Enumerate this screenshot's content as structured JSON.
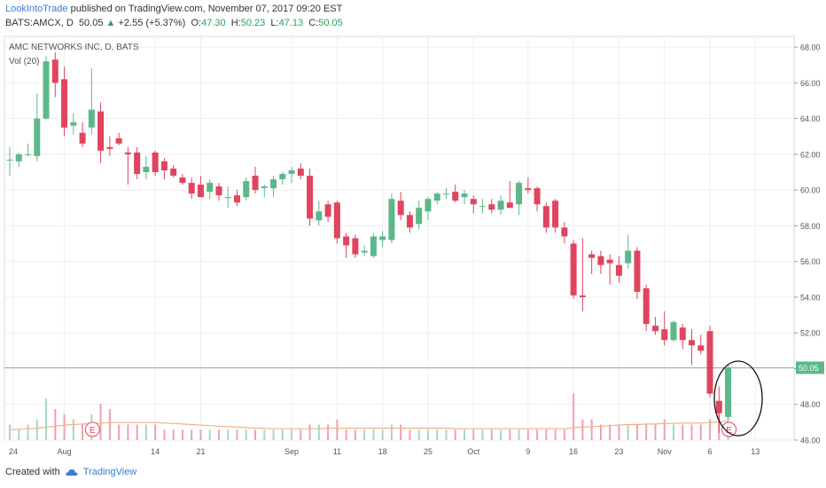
{
  "header": {
    "publisher": "LookIntoTrade",
    "published_text": "published on TradingView.com, November 07, 2017 09:20 EST"
  },
  "ticker": {
    "symbol": "BATS:AMCX, D",
    "last": "50.05",
    "change": "+2.55 (+5.37%)",
    "open_label": "O:",
    "open": "47.30",
    "high_label": "H:",
    "high": "50.23",
    "low_label": "L:",
    "low": "47.13",
    "close_label": "C:",
    "close": "50.05"
  },
  "legend": {
    "title": "AMC NETWORKS INC, D, BATS",
    "volume": "Vol (20)"
  },
  "footer": {
    "created_with": "Created with",
    "brand": "TradingView"
  },
  "colors": {
    "up": "#5cb88a",
    "down": "#e0445e",
    "vol_up": "#a6d8bf",
    "vol_down": "#f0a0ad",
    "ma": "#f5b083",
    "price_line": "#7fc6a4"
  },
  "chart_data": {
    "type": "candlestick",
    "title": "AMC NETWORKS INC, D, BATS",
    "ylim": [
      46,
      68.6
    ],
    "y_ticks": [
      "68.00",
      "66.00",
      "64.00",
      "62.00",
      "60.00",
      "58.00",
      "56.00",
      "54.00",
      "52.00",
      "50.00",
      "48.00",
      "46.00"
    ],
    "last_price": "50.05",
    "x_ticks": [
      "24",
      "Aug",
      "14",
      "21",
      "Sep",
      "11",
      "18",
      "25",
      "Oct",
      "9",
      "16",
      "23",
      "Nov",
      "6",
      "13"
    ],
    "earnings_markers": [
      "E",
      "E"
    ],
    "candles": [
      {
        "o": 61.7,
        "h": 62.4,
        "l": 60.8,
        "c": 61.7
      },
      {
        "o": 61.6,
        "h": 62.1,
        "l": 61.3,
        "c": 62.0
      },
      {
        "o": 62.0,
        "h": 62.6,
        "l": 61.9,
        "c": 62.0
      },
      {
        "o": 61.9,
        "h": 65.4,
        "l": 61.6,
        "c": 64.0
      },
      {
        "o": 64.0,
        "h": 67.5,
        "l": 63.9,
        "c": 67.2
      },
      {
        "o": 67.3,
        "h": 67.7,
        "l": 65.2,
        "c": 66.0
      },
      {
        "o": 66.2,
        "h": 66.9,
        "l": 63.0,
        "c": 63.5
      },
      {
        "o": 63.6,
        "h": 64.3,
        "l": 63.1,
        "c": 63.8
      },
      {
        "o": 63.2,
        "h": 63.8,
        "l": 62.4,
        "c": 62.6
      },
      {
        "o": 63.5,
        "h": 66.8,
        "l": 63.1,
        "c": 64.5
      },
      {
        "o": 64.4,
        "h": 64.9,
        "l": 61.5,
        "c": 62.2
      },
      {
        "o": 62.4,
        "h": 63.0,
        "l": 61.9,
        "c": 62.3
      },
      {
        "o": 62.9,
        "h": 63.2,
        "l": 62.5,
        "c": 62.6
      },
      {
        "o": 62.1,
        "h": 62.4,
        "l": 60.3,
        "c": 62.0
      },
      {
        "o": 62.1,
        "h": 62.4,
        "l": 60.6,
        "c": 60.9
      },
      {
        "o": 61.0,
        "h": 61.9,
        "l": 60.6,
        "c": 61.3
      },
      {
        "o": 62.1,
        "h": 62.2,
        "l": 60.8,
        "c": 61.0
      },
      {
        "o": 61.6,
        "h": 61.8,
        "l": 60.6,
        "c": 61.1
      },
      {
        "o": 61.2,
        "h": 61.4,
        "l": 60.7,
        "c": 60.8
      },
      {
        "o": 60.7,
        "h": 60.9,
        "l": 60.3,
        "c": 60.4
      },
      {
        "o": 60.4,
        "h": 60.7,
        "l": 59.5,
        "c": 59.8
      },
      {
        "o": 60.3,
        "h": 60.8,
        "l": 59.6,
        "c": 59.6
      },
      {
        "o": 59.9,
        "h": 60.6,
        "l": 59.5,
        "c": 60.4
      },
      {
        "o": 60.2,
        "h": 60.4,
        "l": 59.4,
        "c": 59.7
      },
      {
        "o": 59.6,
        "h": 60.2,
        "l": 59.0,
        "c": 59.6
      },
      {
        "o": 59.7,
        "h": 60.0,
        "l": 59.1,
        "c": 59.3
      },
      {
        "o": 59.6,
        "h": 60.7,
        "l": 59.4,
        "c": 60.5
      },
      {
        "o": 60.8,
        "h": 61.3,
        "l": 59.8,
        "c": 60.0
      },
      {
        "o": 60.1,
        "h": 60.3,
        "l": 59.6,
        "c": 60.2
      },
      {
        "o": 60.1,
        "h": 60.8,
        "l": 59.6,
        "c": 60.6
      },
      {
        "o": 60.6,
        "h": 61.0,
        "l": 60.3,
        "c": 60.9
      },
      {
        "o": 60.9,
        "h": 61.3,
        "l": 60.4,
        "c": 61.1
      },
      {
        "o": 61.2,
        "h": 61.5,
        "l": 60.6,
        "c": 60.8
      },
      {
        "o": 60.8,
        "h": 61.2,
        "l": 58.0,
        "c": 58.4
      },
      {
        "o": 58.3,
        "h": 59.4,
        "l": 58.0,
        "c": 58.8
      },
      {
        "o": 59.2,
        "h": 59.4,
        "l": 58.2,
        "c": 58.5
      },
      {
        "o": 59.3,
        "h": 59.4,
        "l": 57.0,
        "c": 57.3
      },
      {
        "o": 57.4,
        "h": 57.6,
        "l": 56.2,
        "c": 56.9
      },
      {
        "o": 57.3,
        "h": 57.5,
        "l": 56.2,
        "c": 56.4
      },
      {
        "o": 56.5,
        "h": 56.9,
        "l": 56.3,
        "c": 56.6
      },
      {
        "o": 56.3,
        "h": 57.6,
        "l": 56.2,
        "c": 57.4
      },
      {
        "o": 57.2,
        "h": 57.7,
        "l": 56.8,
        "c": 57.4
      },
      {
        "o": 57.2,
        "h": 59.8,
        "l": 57.0,
        "c": 59.5
      },
      {
        "o": 59.4,
        "h": 59.9,
        "l": 58.3,
        "c": 58.6
      },
      {
        "o": 58.6,
        "h": 58.8,
        "l": 57.6,
        "c": 57.9
      },
      {
        "o": 58.1,
        "h": 59.4,
        "l": 57.8,
        "c": 59.0
      },
      {
        "o": 58.8,
        "h": 59.6,
        "l": 58.3,
        "c": 59.5
      },
      {
        "o": 59.4,
        "h": 59.9,
        "l": 59.2,
        "c": 59.8
      },
      {
        "o": 59.8,
        "h": 60.1,
        "l": 59.5,
        "c": 59.8
      },
      {
        "o": 59.9,
        "h": 60.3,
        "l": 59.3,
        "c": 59.4
      },
      {
        "o": 59.6,
        "h": 60.0,
        "l": 59.2,
        "c": 59.8
      },
      {
        "o": 59.5,
        "h": 59.7,
        "l": 58.7,
        "c": 59.2
      },
      {
        "o": 59.1,
        "h": 59.5,
        "l": 58.7,
        "c": 59.1
      },
      {
        "o": 59.2,
        "h": 59.5,
        "l": 58.7,
        "c": 58.9
      },
      {
        "o": 58.9,
        "h": 59.7,
        "l": 58.6,
        "c": 59.4
      },
      {
        "o": 59.3,
        "h": 60.5,
        "l": 59.1,
        "c": 59.0
      },
      {
        "o": 59.2,
        "h": 60.5,
        "l": 58.6,
        "c": 60.4
      },
      {
        "o": 60.1,
        "h": 60.7,
        "l": 59.8,
        "c": 60.0
      },
      {
        "o": 60.1,
        "h": 60.2,
        "l": 58.8,
        "c": 59.2
      },
      {
        "o": 59.1,
        "h": 59.3,
        "l": 57.6,
        "c": 57.9
      },
      {
        "o": 59.4,
        "h": 59.5,
        "l": 57.6,
        "c": 57.9
      },
      {
        "o": 57.9,
        "h": 58.2,
        "l": 57.0,
        "c": 57.4
      },
      {
        "o": 57.0,
        "h": 57.2,
        "l": 53.9,
        "c": 54.1
      },
      {
        "o": 54.1,
        "h": 57.3,
        "l": 53.2,
        "c": 54.0
      },
      {
        "o": 56.4,
        "h": 56.6,
        "l": 55.3,
        "c": 56.2
      },
      {
        "o": 56.3,
        "h": 56.6,
        "l": 55.3,
        "c": 55.8
      },
      {
        "o": 56.1,
        "h": 56.4,
        "l": 54.7,
        "c": 55.9
      },
      {
        "o": 55.8,
        "h": 56.3,
        "l": 54.8,
        "c": 55.2
      },
      {
        "o": 55.9,
        "h": 57.5,
        "l": 55.6,
        "c": 56.6
      },
      {
        "o": 56.6,
        "h": 56.8,
        "l": 53.9,
        "c": 54.3
      },
      {
        "o": 54.5,
        "h": 54.7,
        "l": 52.1,
        "c": 52.5
      },
      {
        "o": 52.4,
        "h": 52.9,
        "l": 51.9,
        "c": 52.1
      },
      {
        "o": 52.2,
        "h": 53.2,
        "l": 51.3,
        "c": 51.6
      },
      {
        "o": 51.6,
        "h": 52.7,
        "l": 51.5,
        "c": 52.6
      },
      {
        "o": 52.3,
        "h": 52.5,
        "l": 51.1,
        "c": 51.6
      },
      {
        "o": 51.6,
        "h": 52.2,
        "l": 50.2,
        "c": 51.3
      },
      {
        "o": 51.3,
        "h": 51.9,
        "l": 50.8,
        "c": 51.0
      },
      {
        "o": 52.1,
        "h": 52.4,
        "l": 48.4,
        "c": 48.6
      },
      {
        "o": 48.2,
        "h": 49.0,
        "l": 46.4,
        "c": 47.5
      },
      {
        "o": 47.3,
        "h": 50.23,
        "l": 47.13,
        "c": 50.05
      }
    ],
    "volume": [
      3,
      2,
      3,
      4,
      8,
      6,
      5,
      4,
      3,
      5,
      7,
      6,
      3,
      3,
      3,
      3,
      3,
      2,
      2,
      2,
      2,
      2,
      2,
      2,
      2,
      2,
      2,
      2,
      2,
      2,
      2,
      2,
      2,
      3,
      3,
      3,
      4,
      2,
      2,
      2,
      2,
      2,
      3,
      3,
      2,
      2,
      2,
      2,
      2,
      2,
      2,
      2,
      2,
      2,
      2,
      2,
      2,
      2,
      2,
      2,
      2,
      2,
      9,
      4,
      4,
      3,
      3,
      3,
      3,
      3,
      3,
      3,
      4,
      3,
      3,
      3,
      3,
      4,
      7,
      5
    ],
    "volume_ma": [
      2.0,
      2.1,
      2.2,
      2.3,
      2.5,
      2.7,
      2.9,
      3.0,
      3.1,
      3.2,
      3.3,
      3.4,
      3.4,
      3.4,
      3.4,
      3.4,
      3.4,
      3.3,
      3.2,
      3.1,
      3.0,
      2.9,
      2.8,
      2.7,
      2.6,
      2.5,
      2.4,
      2.3,
      2.3,
      2.2,
      2.2,
      2.2,
      2.2,
      2.2,
      2.2,
      2.3,
      2.3,
      2.3,
      2.3,
      2.3,
      2.3,
      2.3,
      2.3,
      2.3,
      2.3,
      2.3,
      2.3,
      2.3,
      2.3,
      2.2,
      2.2,
      2.2,
      2.2,
      2.2,
      2.2,
      2.2,
      2.2,
      2.2,
      2.2,
      2.2,
      2.2,
      2.2,
      2.4,
      2.5,
      2.6,
      2.7,
      2.8,
      2.9,
      3.0,
      3.0,
      3.1,
      3.1,
      3.2,
      3.2,
      3.3,
      3.3,
      3.3,
      3.4,
      3.5,
      3.7
    ],
    "volume_max": 12
  }
}
